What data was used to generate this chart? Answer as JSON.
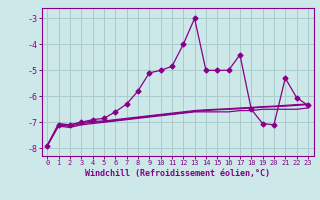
{
  "xlabel": "Windchill (Refroidissement éolien,°C)",
  "bg_color": "#cce8e8",
  "grid_color": "#aacccc",
  "line_color": "#880088",
  "xlim": [
    -0.5,
    23.5
  ],
  "ylim": [
    -8.3,
    -2.6
  ],
  "xticks": [
    0,
    1,
    2,
    3,
    4,
    5,
    6,
    7,
    8,
    9,
    10,
    11,
    12,
    13,
    14,
    15,
    16,
    17,
    18,
    19,
    20,
    21,
    22,
    23
  ],
  "yticks": [
    -8,
    -7,
    -6,
    -5,
    -4,
    -3
  ],
  "series": [
    {
      "x": [
        0,
        1,
        2,
        3,
        4,
        5,
        6,
        7,
        8,
        9,
        10,
        11,
        12,
        13,
        14,
        15,
        16,
        17,
        18,
        19,
        20,
        21,
        22,
        23
      ],
      "y": [
        -7.9,
        -7.1,
        -7.1,
        -7.0,
        -6.9,
        -6.85,
        -6.6,
        -6.3,
        -5.8,
        -5.1,
        -5.0,
        -4.85,
        -4.0,
        -3.0,
        -5.0,
        -5.0,
        -5.0,
        -4.4,
        -6.5,
        -7.05,
        -7.1,
        -5.3,
        -6.05,
        -6.35
      ],
      "marker": "D",
      "markersize": 2.5,
      "lw": 0.9
    },
    {
      "x": [
        0,
        1,
        2,
        3,
        4,
        5,
        6,
        7,
        8,
        9,
        10,
        11,
        12,
        13,
        14,
        15,
        16,
        17,
        18,
        19,
        20,
        21,
        22,
        23
      ],
      "y": [
        -7.9,
        -7.15,
        -7.2,
        -7.1,
        -7.05,
        -7.0,
        -6.95,
        -6.9,
        -6.85,
        -6.8,
        -6.75,
        -6.7,
        -6.65,
        -6.6,
        -6.6,
        -6.6,
        -6.6,
        -6.55,
        -6.55,
        -6.5,
        -6.5,
        -6.5,
        -6.5,
        -6.45
      ],
      "marker": null,
      "markersize": 0,
      "lw": 0.9
    },
    {
      "x": [
        0,
        1,
        2,
        3,
        4,
        5,
        6,
        7,
        8,
        9,
        10,
        11,
        12,
        13,
        14,
        15,
        16,
        17,
        18,
        19,
        20,
        21,
        22,
        23
      ],
      "y": [
        -7.9,
        -7.1,
        -7.15,
        -7.05,
        -7.0,
        -6.98,
        -6.93,
        -6.88,
        -6.82,
        -6.77,
        -6.72,
        -6.68,
        -6.63,
        -6.58,
        -6.55,
        -6.52,
        -6.5,
        -6.48,
        -6.45,
        -6.42,
        -6.4,
        -6.38,
        -6.35,
        -6.32
      ],
      "marker": null,
      "markersize": 0,
      "lw": 0.9
    },
    {
      "x": [
        0,
        1,
        2,
        3,
        4,
        5,
        6,
        7,
        8,
        9,
        10,
        11,
        12,
        13,
        14,
        15,
        16,
        17,
        18,
        19,
        20,
        21,
        22,
        23
      ],
      "y": [
        -7.9,
        -7.05,
        -7.1,
        -7.0,
        -6.97,
        -6.95,
        -6.9,
        -6.85,
        -6.8,
        -6.75,
        -6.7,
        -6.65,
        -6.6,
        -6.55,
        -6.52,
        -6.5,
        -6.48,
        -6.45,
        -6.43,
        -6.4,
        -6.38,
        -6.35,
        -6.32,
        -6.3
      ],
      "marker": null,
      "markersize": 0,
      "lw": 0.9
    }
  ]
}
